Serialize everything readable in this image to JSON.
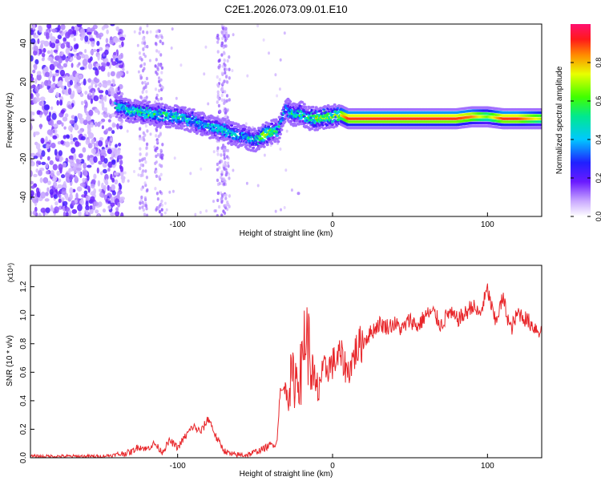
{
  "title": "C2E1.2026.073.09.01.E10",
  "colors": {
    "axis": "#000000",
    "snr_line": "#e8262a",
    "background_purple": "#7a2cf0",
    "light_purple": "#d9c6fb"
  },
  "chart_data": [
    {
      "type": "heatmap",
      "name": "spectrogram",
      "xlabel": "Height of straight line (km)",
      "ylabel": "Frequency (Hz)",
      "xlim": [
        -195,
        135
      ],
      "ylim": [
        -50,
        50
      ],
      "xticks": [
        -100,
        0,
        100
      ],
      "yticks": [
        -40,
        -20,
        0,
        20,
        40
      ],
      "colorbar": {
        "label": "Normalized spectral amplitude",
        "range": [
          0,
          1
        ],
        "ticks": [
          0.0,
          0.2,
          0.4,
          0.6,
          0.8
        ]
      },
      "ridge": {
        "description": "dominant frequency vs height",
        "x": [
          -140,
          -130,
          -120,
          -110,
          -100,
          -90,
          -80,
          -70,
          -60,
          -50,
          -45,
          -40,
          -35,
          -30,
          -25,
          -20,
          -15,
          -10,
          -5,
          0,
          5,
          10,
          20,
          40,
          60,
          80,
          90,
          100,
          110,
          120,
          135
        ],
        "y": [
          8,
          5,
          4,
          3,
          2,
          0,
          -3,
          -5,
          -8,
          -10,
          -8,
          -6,
          -5,
          6,
          3,
          4,
          1,
          1,
          2,
          2,
          3,
          1,
          1,
          1,
          1,
          1,
          2,
          2,
          1,
          1,
          1
        ],
        "amplitude": [
          0.5,
          0.55,
          0.6,
          0.55,
          0.55,
          0.5,
          0.5,
          0.5,
          0.45,
          0.5,
          0.75,
          0.7,
          0.5,
          0.45,
          0.6,
          0.55,
          0.55,
          0.8,
          0.7,
          0.7,
          0.75,
          0.9,
          0.9,
          0.9,
          0.9,
          0.9,
          0.85,
          0.65,
          0.9,
          0.9,
          0.7
        ]
      }
    },
    {
      "type": "line",
      "name": "snr",
      "xlabel": "Height of straight line (km)",
      "ylabel": "SNR (10 * v/v)",
      "y_multiplier": "(x10⁴)",
      "xlim": [
        -195,
        135
      ],
      "ylim": [
        0,
        1.35
      ],
      "xticks": [
        -100,
        0,
        100
      ],
      "yticks": [
        0.0,
        0.2,
        0.4,
        0.6,
        0.8,
        1.0,
        1.2
      ],
      "series": [
        {
          "name": "SNR",
          "x": [
            -195,
            -150,
            -140,
            -130,
            -125,
            -120,
            -115,
            -110,
            -105,
            -100,
            -95,
            -90,
            -85,
            -80,
            -75,
            -70,
            -65,
            -60,
            -55,
            -50,
            -45,
            -40,
            -36,
            -34,
            -30,
            -25,
            -20,
            -18,
            -15,
            -12,
            -10,
            -8,
            -5,
            0,
            5,
            10,
            15,
            20,
            25,
            30,
            35,
            40,
            45,
            50,
            55,
            60,
            65,
            70,
            75,
            80,
            85,
            90,
            95,
            100,
            105,
            110,
            115,
            120,
            125,
            130,
            135
          ],
          "y": [
            0.01,
            0.01,
            0.02,
            0.04,
            0.08,
            0.06,
            0.1,
            0.04,
            0.12,
            0.07,
            0.15,
            0.22,
            0.18,
            0.28,
            0.14,
            0.05,
            0.02,
            0.02,
            0.02,
            0.04,
            0.06,
            0.09,
            0.1,
            0.45,
            0.5,
            0.55,
            0.6,
            0.9,
            0.75,
            0.5,
            0.45,
            0.55,
            0.62,
            0.66,
            0.72,
            0.6,
            0.75,
            0.82,
            0.88,
            0.94,
            0.92,
            0.94,
            0.9,
            0.97,
            0.92,
            1.0,
            1.02,
            0.93,
            1.02,
            0.97,
            1.0,
            1.07,
            1.0,
            1.18,
            0.95,
            1.12,
            0.9,
            1.02,
            0.97,
            0.92,
            0.88
          ]
        }
      ]
    }
  ]
}
